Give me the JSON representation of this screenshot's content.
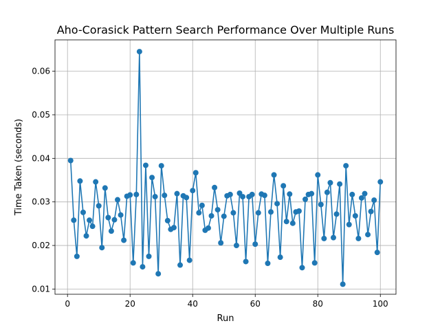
{
  "chart_data": {
    "type": "line",
    "title": "Aho-Corasick Pattern Search Performance Over Multiple Runs",
    "xlabel": "Run",
    "ylabel": "Time Taken (seconds)",
    "xlim": [
      -4,
      105
    ],
    "ylim": [
      0.0088,
      0.0672
    ],
    "xticks": [
      0,
      20,
      40,
      60,
      80,
      100
    ],
    "yticks": [
      0.01,
      0.02,
      0.03,
      0.04,
      0.05,
      0.06
    ],
    "xtick_labels": [
      "0",
      "20",
      "40",
      "60",
      "80",
      "100"
    ],
    "ytick_labels": [
      "0.01",
      "0.02",
      "0.03",
      "0.04",
      "0.05",
      "0.06"
    ],
    "grid": true,
    "color": "#1f77b4",
    "markers": true,
    "series": [
      {
        "x": [
          1,
          2,
          3,
          4,
          5,
          6,
          7,
          8,
          9,
          10,
          11,
          12,
          13,
          14,
          15,
          16,
          17,
          18,
          19,
          20,
          21,
          22,
          23,
          24,
          25,
          26,
          27,
          28,
          29,
          30,
          31,
          32,
          33,
          34,
          35,
          36,
          37,
          38,
          39,
          40,
          41,
          42,
          43,
          44,
          45,
          46,
          47,
          48,
          49,
          50,
          51,
          52,
          53,
          54,
          55,
          56,
          57,
          58,
          59,
          60,
          61,
          62,
          63,
          64,
          65,
          66,
          67,
          68,
          69,
          70,
          71,
          72,
          73,
          74,
          75,
          76,
          77,
          78,
          79,
          80,
          81,
          82,
          83,
          84,
          85,
          86,
          87,
          88,
          89,
          90,
          91,
          92,
          93,
          94,
          95,
          96,
          97,
          98,
          99,
          100
        ],
        "values": [
          0.0395,
          0.0258,
          0.0175,
          0.0348,
          0.0276,
          0.0222,
          0.0258,
          0.0244,
          0.0346,
          0.0291,
          0.0195,
          0.0332,
          0.0264,
          0.0233,
          0.0259,
          0.0305,
          0.027,
          0.0212,
          0.0313,
          0.0316,
          0.016,
          0.0317,
          0.0645,
          0.0151,
          0.0384,
          0.0175,
          0.0356,
          0.0312,
          0.0135,
          0.0383,
          0.0315,
          0.0257,
          0.0237,
          0.0241,
          0.0319,
          0.0155,
          0.0314,
          0.031,
          0.0166,
          0.0326,
          0.0367,
          0.0275,
          0.0292,
          0.0235,
          0.024,
          0.0268,
          0.0333,
          0.0282,
          0.0206,
          0.0267,
          0.0314,
          0.0317,
          0.0275,
          0.02,
          0.032,
          0.0312,
          0.0163,
          0.0312,
          0.0317,
          0.0203,
          0.0275,
          0.0318,
          0.0315,
          0.0159,
          0.0277,
          0.0362,
          0.0296,
          0.0173,
          0.0337,
          0.0255,
          0.0318,
          0.0251,
          0.0277,
          0.0279,
          0.0149,
          0.0306,
          0.0317,
          0.0319,
          0.016,
          0.0362,
          0.0294,
          0.0216,
          0.0322,
          0.0344,
          0.0218,
          0.0272,
          0.0341,
          0.0111,
          0.0383,
          0.0248,
          0.0317,
          0.0268,
          0.0216,
          0.0309,
          0.0319,
          0.0225,
          0.0278,
          0.0304,
          0.0184,
          0.0346
        ]
      }
    ]
  }
}
